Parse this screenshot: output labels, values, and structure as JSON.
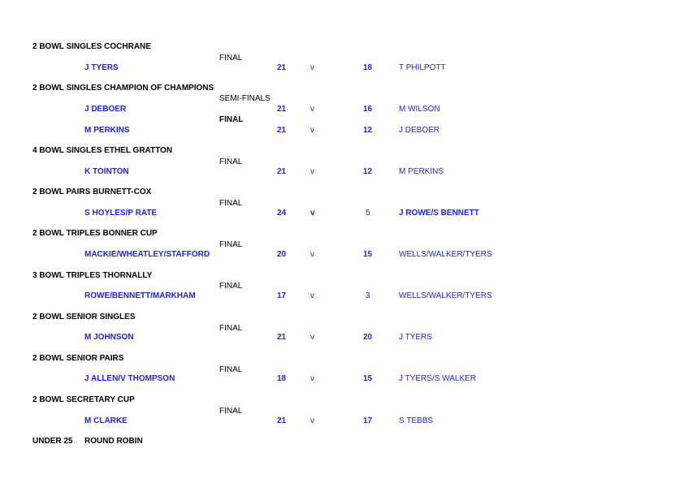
{
  "competitions": [
    {
      "title": "2 BOWL SINGLES COCHRANE",
      "rounds": [
        {
          "label": "FINAL",
          "match": {
            "winner": "J TYERS",
            "score1": "21",
            "v": "v",
            "score2": "18",
            "loser": "T PHILPOTT"
          }
        }
      ]
    },
    {
      "title": "2 BOWL SINGLES CHAMPION OF CHAMPIONS",
      "rounds": [
        {
          "label": "SEMI-FINALS",
          "match": {
            "winner": "J DEBOER",
            "score1": "21",
            "v": "v",
            "score2": "16",
            "loser": "M WILSON"
          }
        },
        {
          "label": "FINAL",
          "match": {
            "winner": "M PERKINS",
            "score1": "21",
            "v": "v",
            "score2": "12",
            "loser": "J DEBOER"
          }
        }
      ]
    },
    {
      "title": "4 BOWL SINGLES ETHEL GRATTON",
      "rounds": [
        {
          "label": "FINAL",
          "match": {
            "winner": "K TOINTON",
            "score1": "21",
            "v": "v",
            "score2": "12",
            "loser": "M PERKINS"
          }
        }
      ]
    },
    {
      "title": "2 BOWL PAIRS BURNETT-COX",
      "rounds": [
        {
          "label": "FINAL",
          "match": {
            "winner": "S HOYLES/P RATE",
            "score1": "24",
            "v": "v",
            "score2": "5",
            "loser": "J ROWE/S BENNETT"
          }
        }
      ]
    },
    {
      "title": "2 BOWL TRIPLES BONNER CUP",
      "rounds": [
        {
          "label": "FINAL",
          "match": {
            "winner": "MACKIE/WHEATLEY/STAFFORD",
            "score1": "20",
            "v": "v",
            "score2": "15",
            "loser": "WELLS/WALKER/TYERS"
          }
        }
      ]
    },
    {
      "title": "3 BOWL TRIPLES THORNALLY",
      "rounds": [
        {
          "label": "FINAL",
          "match": {
            "winner": "ROWE/BENNETT/MARKHAM",
            "score1": "17",
            "v": "v",
            "score2": "3",
            "loser": "WELLS/WALKER/TYERS"
          }
        }
      ]
    },
    {
      "title": "2 BOWL SENIOR SINGLES",
      "rounds": [
        {
          "label": "FINAL",
          "match": {
            "winner": "M JOHNSON",
            "score1": "21",
            "v": "v",
            "score2": "20",
            "loser": "J TYERS"
          }
        }
      ]
    },
    {
      "title": "2 BOWL SENIOR PAIRS",
      "rounds": [
        {
          "label": "FINAL",
          "match": {
            "winner": "J ALLEN/V THOMPSON",
            "score1": "18",
            "v": "v",
            "score2": "15",
            "loser": "J TYERS/S WALKER"
          }
        }
      ]
    },
    {
      "title": "2 BOWL SECRETARY CUP",
      "rounds": [
        {
          "label": "FINAL",
          "match": {
            "winner": "M CLARKE",
            "score1": "21",
            "v": "v",
            "score2": "17",
            "loser": "S TEBBS"
          }
        }
      ]
    }
  ],
  "footer": {
    "title": "UNDER 25",
    "subtitle": "ROUND ROBIN"
  }
}
